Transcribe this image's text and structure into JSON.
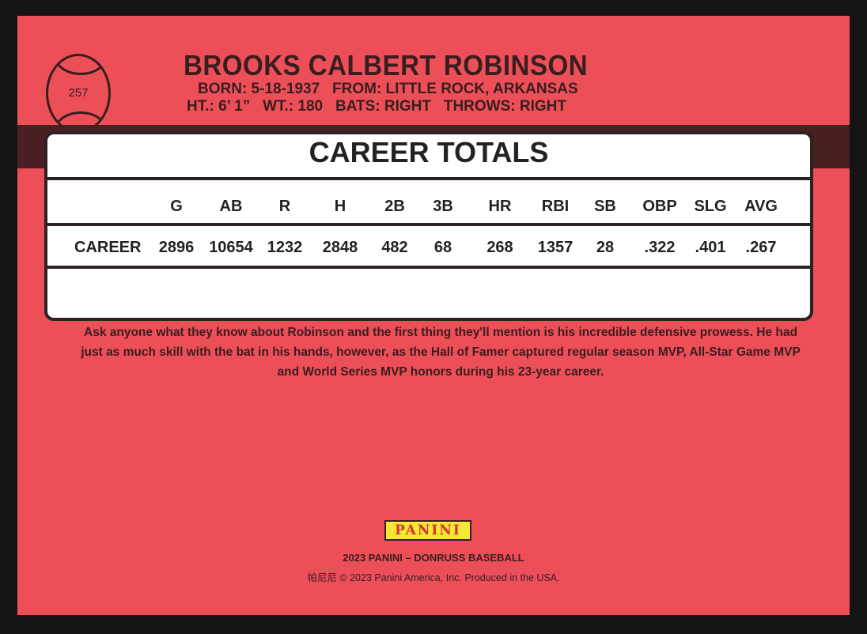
{
  "card_number": "257",
  "player": {
    "name": "BROOKS CALBERT ROBINSON",
    "born": "BORN: 5-18-1937",
    "from": "FROM: LITTLE ROCK, ARKANSAS",
    "height": "HT.: 6’ 1”",
    "weight": "WT.: 180",
    "bats": "BATS: RIGHT",
    "throws": "THROWS: RIGHT"
  },
  "stats": {
    "title": "CAREER TOTALS",
    "headers": [
      "G",
      "AB",
      "R",
      "H",
      "2B",
      "3B",
      "HR",
      "RBI",
      "SB",
      "OBP",
      "SLG",
      "AVG"
    ],
    "rows": [
      {
        "label": "CAREER",
        "values": [
          "2896",
          "10654",
          "1232",
          "2848",
          "482",
          "68",
          "268",
          "1357",
          "28",
          ".322",
          ".401",
          ".267"
        ]
      }
    ]
  },
  "bio": "Ask anyone what they know about Robinson and the first thing they'll mention is his incredible defensive prowess. He had just as much skill with the bat in his hands, however, as the Hall of Famer captured regular season MVP, All-Star Game MVP and World Series MVP honors during his 23-year career.",
  "footer": {
    "logo": "PANINI",
    "set": "2023 PANINI – DONRUSS BASEBALL",
    "copyright": "帕尼尼 © 2023 Panini America, Inc. Produced in the USA."
  },
  "colors": {
    "card": "#ec4f58",
    "ink": "#3a1d1e",
    "logo_bg": "#f5e832"
  }
}
